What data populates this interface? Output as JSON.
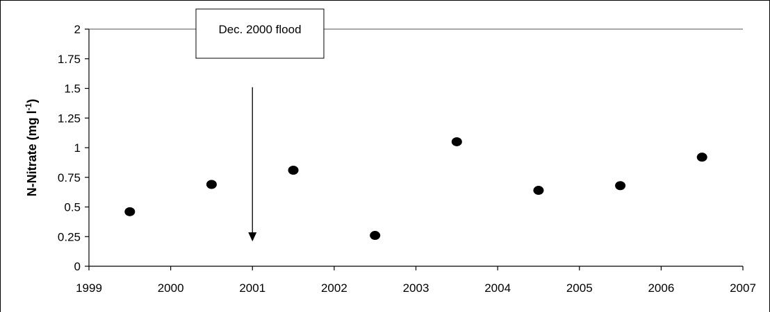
{
  "chart_data": {
    "type": "scatter",
    "title": "",
    "xlabel": "",
    "ylabel_main": "N-Nitrate  (mg l",
    "ylabel_sup": "-1",
    "ylabel_close": ")",
    "xlim": [
      1999,
      2007
    ],
    "ylim": [
      0,
      2
    ],
    "x_ticks": [
      "1999",
      "2000",
      "2001",
      "2002",
      "2003",
      "2004",
      "2005",
      "2006",
      "2007"
    ],
    "y_ticks": [
      "0",
      "0.25",
      "0.5",
      "0.75",
      "1",
      "1.25",
      "1.5",
      "1.75",
      "2"
    ],
    "grid": "top border only",
    "legend": "none",
    "marker_color": "#000000",
    "points": [
      {
        "x": 1999.5,
        "y": 0.46
      },
      {
        "x": 2000.5,
        "y": 0.69
      },
      {
        "x": 2001.5,
        "y": 0.81
      },
      {
        "x": 2002.5,
        "y": 0.26
      },
      {
        "x": 2003.5,
        "y": 1.05
      },
      {
        "x": 2004.5,
        "y": 0.64
      },
      {
        "x": 2005.5,
        "y": 0.68
      },
      {
        "x": 2006.5,
        "y": 0.92
      }
    ],
    "annotation": {
      "text": "Dec. 2000 flood",
      "arrow_x": 2001,
      "arrow_top_y": 1.51,
      "arrow_tip_y": 0.21
    }
  }
}
